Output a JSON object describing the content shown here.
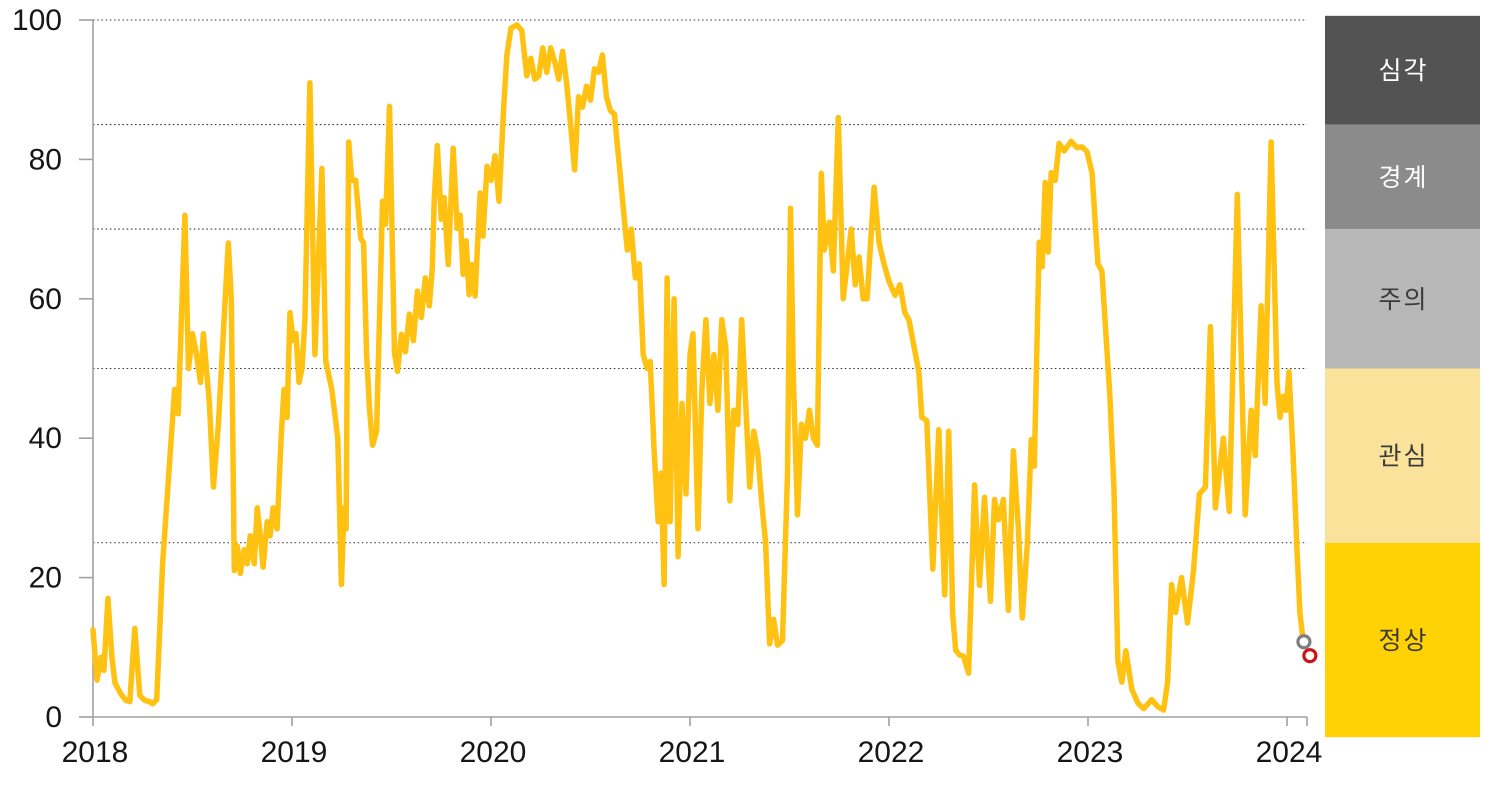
{
  "chart": {
    "title": "",
    "accent_color": "#FFC112",
    "axis_color": "#A0A0A0",
    "grid_color": "#3C3C3C",
    "label_color": "#161616"
  },
  "chart_data": {
    "type": "line",
    "xlabel": "",
    "ylabel": "",
    "x_tick_labels": [
      "2018",
      "2019",
      "2020",
      "2021",
      "2022",
      "2023",
      "2024"
    ],
    "y_tick_labels": [
      "0",
      "20",
      "40",
      "60",
      "80",
      "100"
    ],
    "y_tick_values": [
      0,
      20,
      40,
      60,
      80,
      100
    ],
    "ylim": [
      0,
      100
    ],
    "xlim_years": [
      2018.0,
      2024.25
    ],
    "grid": "horizontal-dotted",
    "gridline_values": [
      100,
      85,
      70,
      50,
      25
    ],
    "legend_position": "right-band-column",
    "series": [
      {
        "name": "index",
        "color": "#FFC112",
        "points": [
          [
            0.0,
            12.5
          ],
          [
            0.02,
            5.3
          ],
          [
            0.04,
            8.6
          ],
          [
            0.055,
            6.7
          ],
          [
            0.075,
            17.0
          ],
          [
            0.095,
            8.6
          ],
          [
            0.11,
            4.9
          ],
          [
            0.14,
            3.3
          ],
          [
            0.165,
            2.4
          ],
          [
            0.185,
            2.2
          ],
          [
            0.21,
            12.7
          ],
          [
            0.235,
            3.1
          ],
          [
            0.26,
            2.4
          ],
          [
            0.285,
            2.2
          ],
          [
            0.3,
            1.9
          ],
          [
            0.32,
            2.5
          ],
          [
            0.35,
            22.0
          ],
          [
            0.41,
            47.0
          ],
          [
            0.428,
            43.5
          ],
          [
            0.462,
            72.0
          ],
          [
            0.48,
            50.0
          ],
          [
            0.5,
            55.0
          ],
          [
            0.52,
            52.0
          ],
          [
            0.54,
            48.0
          ],
          [
            0.555,
            55.0
          ],
          [
            0.57,
            50.0
          ],
          [
            0.585,
            45.0
          ],
          [
            0.605,
            33.0
          ],
          [
            0.63,
            42.0
          ],
          [
            0.655,
            55.0
          ],
          [
            0.68,
            68.0
          ],
          [
            0.695,
            60.0
          ],
          [
            0.71,
            21.0
          ],
          [
            0.725,
            24.5
          ],
          [
            0.74,
            20.6
          ],
          [
            0.76,
            24.0
          ],
          [
            0.775,
            22.0
          ],
          [
            0.79,
            26.0
          ],
          [
            0.81,
            22.0
          ],
          [
            0.825,
            30.0
          ],
          [
            0.84,
            26.0
          ],
          [
            0.855,
            21.5
          ],
          [
            0.875,
            28.0
          ],
          [
            0.89,
            26.0
          ],
          [
            0.905,
            30.0
          ],
          [
            0.925,
            27.0
          ],
          [
            0.945,
            40.0
          ],
          [
            0.96,
            47.0
          ],
          [
            0.975,
            43.0
          ],
          [
            0.99,
            58.0
          ],
          [
            1.005,
            54.0
          ],
          [
            1.02,
            55.0
          ],
          [
            1.035,
            48.0
          ],
          [
            1.05,
            50.0
          ],
          [
            1.065,
            57.0
          ],
          [
            1.09,
            91.0
          ],
          [
            1.115,
            52.0
          ],
          [
            1.15,
            78.7
          ],
          [
            1.17,
            51.0
          ],
          [
            1.2,
            47.0
          ],
          [
            1.23,
            40.0
          ],
          [
            1.248,
            19.0
          ],
          [
            1.262,
            30.0
          ],
          [
            1.272,
            27.0
          ],
          [
            1.285,
            82.5
          ],
          [
            1.3,
            77.0
          ],
          [
            1.32,
            77.0
          ],
          [
            1.345,
            68.7
          ],
          [
            1.36,
            68.0
          ],
          [
            1.375,
            52.0
          ],
          [
            1.39,
            44.0
          ],
          [
            1.405,
            39.0
          ],
          [
            1.425,
            41.0
          ],
          [
            1.455,
            74.0
          ],
          [
            1.47,
            70.7
          ],
          [
            1.49,
            87.6
          ],
          [
            1.515,
            52.2
          ],
          [
            1.53,
            49.6
          ],
          [
            1.55,
            54.9
          ],
          [
            1.57,
            52.4
          ],
          [
            1.59,
            57.8
          ],
          [
            1.61,
            54.0
          ],
          [
            1.63,
            61.1
          ],
          [
            1.65,
            57.3
          ],
          [
            1.67,
            63.0
          ],
          [
            1.69,
            59.0
          ],
          [
            1.705,
            64.4
          ],
          [
            1.715,
            74.5
          ],
          [
            1.73,
            82.0
          ],
          [
            1.75,
            71.4
          ],
          [
            1.765,
            74.5
          ],
          [
            1.785,
            64.9
          ],
          [
            1.81,
            81.6
          ],
          [
            1.83,
            70.1
          ],
          [
            1.845,
            72.0
          ],
          [
            1.86,
            63.5
          ],
          [
            1.875,
            68.3
          ],
          [
            1.89,
            60.6
          ],
          [
            1.905,
            64.9
          ],
          [
            1.92,
            60.4
          ],
          [
            1.945,
            75.2
          ],
          [
            1.96,
            69.0
          ],
          [
            1.98,
            79.0
          ],
          [
            2.0,
            77.0
          ],
          [
            2.02,
            80.5
          ],
          [
            2.04,
            74.0
          ],
          [
            2.065,
            88.0
          ],
          [
            2.08,
            95.0
          ],
          [
            2.1,
            98.8
          ],
          [
            2.13,
            99.3
          ],
          [
            2.155,
            98.5
          ],
          [
            2.18,
            92.0
          ],
          [
            2.2,
            94.5
          ],
          [
            2.22,
            91.5
          ],
          [
            2.24,
            92.0
          ],
          [
            2.26,
            96.0
          ],
          [
            2.28,
            92.5
          ],
          [
            2.3,
            96.0
          ],
          [
            2.32,
            94.0
          ],
          [
            2.34,
            91.5
          ],
          [
            2.36,
            95.5
          ],
          [
            2.38,
            91.0
          ],
          [
            2.4,
            85.0
          ],
          [
            2.42,
            78.5
          ],
          [
            2.44,
            89.0
          ],
          [
            2.46,
            87.5
          ],
          [
            2.48,
            90.5
          ],
          [
            2.5,
            88.5
          ],
          [
            2.52,
            93.0
          ],
          [
            2.54,
            92.5
          ],
          [
            2.56,
            95.0
          ],
          [
            2.58,
            89.0
          ],
          [
            2.6,
            87.0
          ],
          [
            2.62,
            86.5
          ],
          [
            2.645,
            79.0
          ],
          [
            2.665,
            73.0
          ],
          [
            2.685,
            67.0
          ],
          [
            2.705,
            70.0
          ],
          [
            2.725,
            63.0
          ],
          [
            2.745,
            65.0
          ],
          [
            2.765,
            52.0
          ],
          [
            2.785,
            50.0
          ],
          [
            2.8,
            51.0
          ],
          [
            2.82,
            38.0
          ],
          [
            2.84,
            28.0
          ],
          [
            2.855,
            35.0
          ],
          [
            2.87,
            19.0
          ],
          [
            2.885,
            63.0
          ],
          [
            2.9,
            28.0
          ],
          [
            2.92,
            60.0
          ],
          [
            2.94,
            23.0
          ],
          [
            2.96,
            45.0
          ],
          [
            2.98,
            32.0
          ],
          [
            3.0,
            52.0
          ],
          [
            3.015,
            55.0
          ],
          [
            3.04,
            27.0
          ],
          [
            3.06,
            47.0
          ],
          [
            3.08,
            57.0
          ],
          [
            3.1,
            45.0
          ],
          [
            3.12,
            52.0
          ],
          [
            3.14,
            44.0
          ],
          [
            3.16,
            57.0
          ],
          [
            3.18,
            53.0
          ],
          [
            3.2,
            31.0
          ],
          [
            3.22,
            44.0
          ],
          [
            3.24,
            42.0
          ],
          [
            3.26,
            57.0
          ],
          [
            3.28,
            45.0
          ],
          [
            3.3,
            33.0
          ],
          [
            3.32,
            41.0
          ],
          [
            3.34,
            38.0
          ],
          [
            3.36,
            31.0
          ],
          [
            3.38,
            25.0
          ],
          [
            3.4,
            10.5
          ],
          [
            3.42,
            14.0
          ],
          [
            3.44,
            10.3
          ],
          [
            3.465,
            11.0
          ],
          [
            3.49,
            35.0
          ],
          [
            3.505,
            73.0
          ],
          [
            3.52,
            48.0
          ],
          [
            3.54,
            29.0
          ],
          [
            3.56,
            42.0
          ],
          [
            3.58,
            40.0
          ],
          [
            3.6,
            44.0
          ],
          [
            3.62,
            40.0
          ],
          [
            3.64,
            39.0
          ],
          [
            3.66,
            78.0
          ],
          [
            3.675,
            67.0
          ],
          [
            3.7,
            71.0
          ],
          [
            3.72,
            64.0
          ],
          [
            3.745,
            86.0
          ],
          [
            3.77,
            60.0
          ],
          [
            3.79,
            65.0
          ],
          [
            3.81,
            70.0
          ],
          [
            3.83,
            62.0
          ],
          [
            3.85,
            66.0
          ],
          [
            3.87,
            60.0
          ],
          [
            3.89,
            60.0
          ],
          [
            3.925,
            76.0
          ],
          [
            3.95,
            68.0
          ],
          [
            3.975,
            65.0
          ],
          [
            4.0,
            62.5
          ],
          [
            4.03,
            60.5
          ],
          [
            4.055,
            62.0
          ],
          [
            4.08,
            58.0
          ],
          [
            4.1,
            57.0
          ],
          [
            4.13,
            52.5
          ],
          [
            4.15,
            49.5
          ],
          [
            4.165,
            43.0
          ],
          [
            4.19,
            42.5
          ],
          [
            4.22,
            21.2
          ],
          [
            4.25,
            41.2
          ],
          [
            4.28,
            17.5
          ],
          [
            4.3,
            41.0
          ],
          [
            4.32,
            14.7
          ],
          [
            4.335,
            9.6
          ],
          [
            4.355,
            8.9
          ],
          [
            4.375,
            8.7
          ],
          [
            4.4,
            6.3
          ],
          [
            4.43,
            33.3
          ],
          [
            4.455,
            18.9
          ],
          [
            4.48,
            31.5
          ],
          [
            4.51,
            16.6
          ],
          [
            4.53,
            31.2
          ],
          [
            4.55,
            28.3
          ],
          [
            4.575,
            31.2
          ],
          [
            4.6,
            15.3
          ],
          [
            4.625,
            38.2
          ],
          [
            4.65,
            27.0
          ],
          [
            4.67,
            14.2
          ],
          [
            4.695,
            24.8
          ],
          [
            4.715,
            39.8
          ],
          [
            4.73,
            36.0
          ],
          [
            4.755,
            68.1
          ],
          [
            4.77,
            64.6
          ],
          [
            4.785,
            76.7
          ],
          [
            4.8,
            66.7
          ],
          [
            4.815,
            78.1
          ],
          [
            4.835,
            77.0
          ],
          [
            4.855,
            82.3
          ],
          [
            4.88,
            81.2
          ],
          [
            4.915,
            82.6
          ],
          [
            4.945,
            81.7
          ],
          [
            4.97,
            81.8
          ],
          [
            4.995,
            81.1
          ],
          [
            5.02,
            78.1
          ],
          [
            5.05,
            65.0
          ],
          [
            5.07,
            64.0
          ],
          [
            5.09,
            55.0
          ],
          [
            5.11,
            46.0
          ],
          [
            5.13,
            33.0
          ],
          [
            5.15,
            8.0
          ],
          [
            5.17,
            5.0
          ],
          [
            5.19,
            9.5
          ],
          [
            5.22,
            4.0
          ],
          [
            5.25,
            2.0
          ],
          [
            5.28,
            1.2
          ],
          [
            5.32,
            2.5
          ],
          [
            5.35,
            1.5
          ],
          [
            5.38,
            1.0
          ],
          [
            5.4,
            5.0
          ],
          [
            5.42,
            19.0
          ],
          [
            5.44,
            15.0
          ],
          [
            5.47,
            20.0
          ],
          [
            5.5,
            13.5
          ],
          [
            5.53,
            21.0
          ],
          [
            5.56,
            32.0
          ],
          [
            5.59,
            33.0
          ],
          [
            5.615,
            56.0
          ],
          [
            5.64,
            30.0
          ],
          [
            5.68,
            40.0
          ],
          [
            5.71,
            29.5
          ],
          [
            5.75,
            75.0
          ],
          [
            5.79,
            29.0
          ],
          [
            5.82,
            44.0
          ],
          [
            5.84,
            37.5
          ],
          [
            5.87,
            59.0
          ],
          [
            5.89,
            45.0
          ],
          [
            5.92,
            82.5
          ],
          [
            5.95,
            48.0
          ],
          [
            5.965,
            43.0
          ],
          [
            5.98,
            46.0
          ],
          [
            5.995,
            44.0
          ],
          [
            6.01,
            49.5
          ],
          [
            6.03,
            38.0
          ],
          [
            6.05,
            24.0
          ],
          [
            6.065,
            15.0
          ],
          [
            6.08,
            11.2
          ]
        ]
      }
    ],
    "end_markers": [
      {
        "name": "previous-point",
        "t": 6.085,
        "value": 10.8,
        "stroke": "#7F7F7F",
        "fill": "#FFFFFF"
      },
      {
        "name": "latest-point",
        "t": 6.115,
        "value": 8.8,
        "stroke": "#CE1212",
        "fill": "#FFFFFF"
      }
    ],
    "risk_bands": [
      {
        "label": "심각",
        "from": 85,
        "to": 100,
        "color": "#535353",
        "text_color": "#FFFFFF"
      },
      {
        "label": "경계",
        "from": 70,
        "to": 85,
        "color": "#8B8B8B",
        "text_color": "#FFFFFF"
      },
      {
        "label": "주의",
        "from": 50,
        "to": 70,
        "color": "#B7B7B7",
        "text_color": "#3B3B3B"
      },
      {
        "label": "관심",
        "from": 25,
        "to": 50,
        "color": "#FAE29A",
        "text_color": "#3B3B3B"
      },
      {
        "label": "정상",
        "from": 0,
        "to": 25,
        "color": "#FFD205",
        "text_color": "#3B3B3B"
      }
    ]
  }
}
